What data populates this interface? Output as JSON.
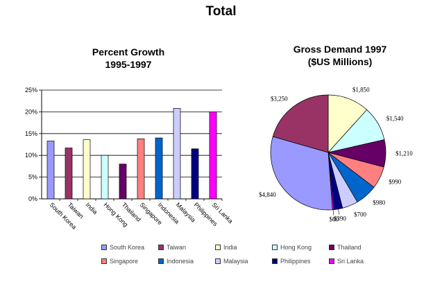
{
  "page_title": "Total",
  "chart_data": [
    {
      "type": "bar",
      "title_line1": "Percent Growth",
      "title_line2": "1995-1997",
      "categories": [
        "South Korea",
        "Taiwan",
        "India",
        "Hong Kong",
        "Thailand",
        "Singapore",
        "Indonesia",
        "Malaysia",
        "Philippines",
        "Sri Lanka"
      ],
      "values": [
        13.3,
        11.7,
        13.6,
        10.0,
        8.0,
        13.8,
        14.0,
        20.8,
        11.5,
        20.0
      ],
      "colors": [
        "#9999ff",
        "#993366",
        "#ffffcc",
        "#ccffff",
        "#660066",
        "#ff8080",
        "#0066cc",
        "#ccccff",
        "#000080",
        "#ff00ff"
      ],
      "ylim": [
        0,
        25
      ],
      "yticks": [
        "0%",
        "5%",
        "10%",
        "15%",
        "20%",
        "25%"
      ],
      "xlabel": "",
      "ylabel": "",
      "grid": true
    },
    {
      "type": "pie",
      "title_line1": "Gross Demand 1997",
      "title_line2": "($US Millions)",
      "start_angle": 90,
      "slices": [
        {
          "name": "India",
          "value": 1850,
          "label": "$1,850",
          "color": "#ffffcc"
        },
        {
          "name": "Hong Kong",
          "value": 1540,
          "label": "$1,540",
          "color": "#ccffff"
        },
        {
          "name": "Thailand",
          "value": 1210,
          "label": "$1,210",
          "color": "#660066"
        },
        {
          "name": "Singapore",
          "value": 990,
          "label": "$990",
          "color": "#ff8080"
        },
        {
          "name": "Indonesia",
          "value": 980,
          "label": "$980",
          "color": "#0066cc"
        },
        {
          "name": "Malaysia",
          "value": 700,
          "label": "$700",
          "color": "#ccccff"
        },
        {
          "name": "Philippines",
          "value": 390,
          "label": "$390",
          "color": "#000080"
        },
        {
          "name": "Sri Lanka",
          "value": 60,
          "label": "$60",
          "color": "#ff00ff"
        },
        {
          "name": "South Korea",
          "value": 4840,
          "label": "$4,840",
          "color": "#9999ff"
        },
        {
          "name": "Taiwan",
          "value": 3250,
          "label": "$3,250",
          "color": "#993366"
        }
      ]
    }
  ],
  "legend": [
    {
      "name": "South Korea",
      "color": "#9999ff"
    },
    {
      "name": "Taiwan",
      "color": "#993366"
    },
    {
      "name": "India",
      "color": "#ffffcc"
    },
    {
      "name": "Hong Kong",
      "color": "#ccffff"
    },
    {
      "name": "Thailand",
      "color": "#660066"
    },
    {
      "name": "Singapore",
      "color": "#ff8080"
    },
    {
      "name": "Indonesia",
      "color": "#0066cc"
    },
    {
      "name": "Malaysia",
      "color": "#ccccff"
    },
    {
      "name": "Philippines",
      "color": "#000080"
    },
    {
      "name": "Sri Lanka",
      "color": "#ff00ff"
    }
  ]
}
